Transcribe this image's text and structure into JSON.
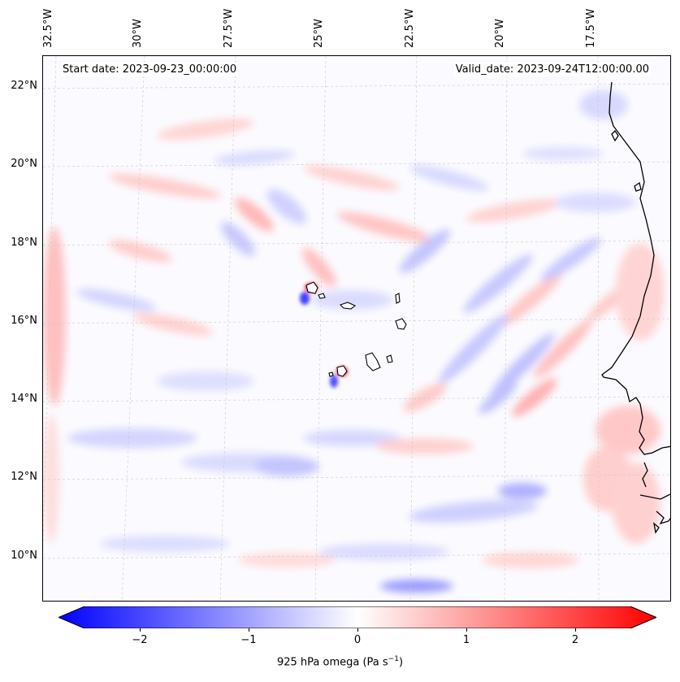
{
  "map": {
    "start_date": "Start date: 2023-09-23_00:00:00",
    "valid_date": "Valid_date: 2023-09-24T12:00:00.00",
    "lon_labels": [
      "32.5°W",
      "30°W",
      "27.5°W",
      "25°W",
      "22.5°W",
      "20°W",
      "17.5°W"
    ],
    "lat_labels": [
      "22°N",
      "20°N",
      "18°N",
      "16°N",
      "14°N",
      "12°N",
      "10°N"
    ],
    "colors": {
      "negative": "#0000ff",
      "neutral": "#ffffff",
      "positive": "#ff0000",
      "coastline": "#000000",
      "grid": "#bbbbbb"
    }
  },
  "colorbar": {
    "min": -2.6,
    "max": 2.6,
    "ticks": [
      "−2",
      "−1",
      "0",
      "1",
      "2"
    ],
    "label_main": "925 hPa omega (Pa s",
    "label_exp": "−1",
    "label_end": ")"
  }
}
